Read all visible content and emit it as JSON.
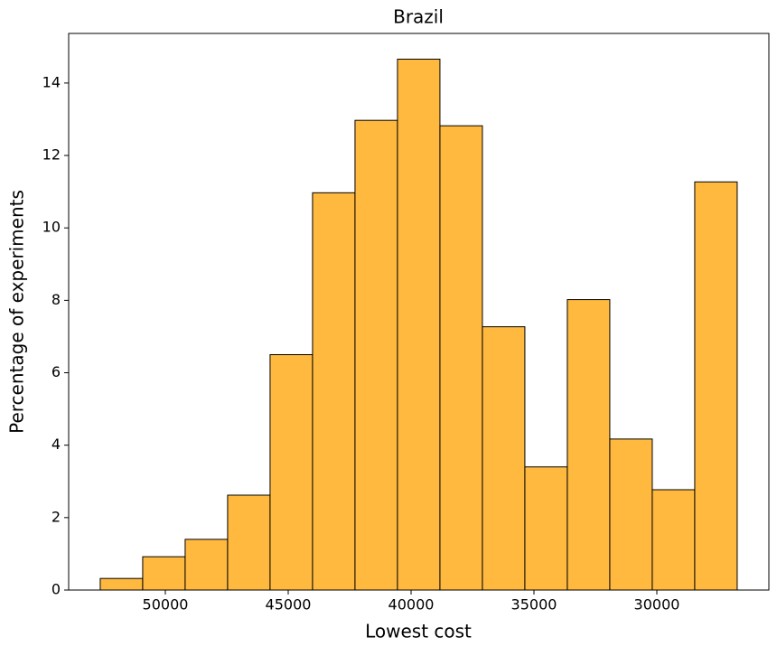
{
  "chart_data": {
    "type": "histogram",
    "title": "Brazil",
    "x_label": "Lowest cost",
    "y_label": "Percentage of experiments",
    "bins": [
      52650,
      50922,
      49194,
      47466,
      45738,
      44010,
      42282,
      40554,
      38826,
      37098,
      35370,
      33642,
      31914,
      30186,
      28458,
      26730
    ],
    "values": [
      0.32,
      0.92,
      1.4,
      2.62,
      6.5,
      10.97,
      12.97,
      14.66,
      12.82,
      7.27,
      3.4,
      8.02,
      4.17,
      2.77,
      11.27
    ],
    "color": "#ffb93f",
    "edge_color": "#000000",
    "xlim": [
      53934,
      25441
    ],
    "xticks": [
      50000,
      45000,
      40000,
      35000,
      30000
    ],
    "ylim": [
      0,
      15.37
    ],
    "yticks": [
      0,
      2,
      4,
      6,
      8,
      10,
      12,
      14
    ]
  }
}
